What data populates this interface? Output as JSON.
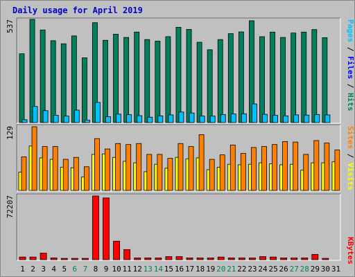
{
  "title": "Daily usage for April 2019",
  "colors": {
    "background": "#c0c0c0",
    "title": "#0000cc",
    "hits": "#00805c",
    "files": "#0000ff",
    "pages": "#00c0ff",
    "visits": "#ffff00",
    "sites": "#ff8000",
    "kbytes": "#ff0000",
    "weekend_day_label": "#00805c"
  },
  "chart_data": [
    {
      "type": "bar",
      "panel": "hits-files-pages",
      "ylim": [
        0,
        537
      ],
      "ymax_label": "537",
      "legend": [
        "Pages",
        "/",
        "Files",
        "/",
        "Hits"
      ],
      "categories": [
        "1",
        "2",
        "3",
        "4",
        "5",
        "6",
        "7",
        "8",
        "9",
        "10",
        "11",
        "12",
        "13",
        "14",
        "15",
        "16",
        "17",
        "18",
        "19",
        "20",
        "21",
        "22",
        "23",
        "24",
        "25",
        "26",
        "27",
        "28",
        "29",
        "30",
        "31"
      ],
      "series": [
        {
          "name": "Hits",
          "values": [
            358,
            537,
            482,
            426,
            410,
            451,
            337,
            520,
            428,
            460,
            443,
            471,
            432,
            424,
            447,
            496,
            485,
            418,
            379,
            432,
            463,
            472,
            530,
            447,
            471,
            443,
            466,
            471,
            484,
            442,
            0
          ]
        },
        {
          "name": "Files",
          "values": [
            0,
            0,
            0,
            0,
            0,
            0,
            0,
            0,
            0,
            0,
            0,
            0,
            0,
            0,
            0,
            0,
            0,
            0,
            0,
            0,
            0,
            0,
            0,
            0,
            0,
            0,
            0,
            0,
            0,
            0,
            0
          ]
        },
        {
          "name": "Pages",
          "values": [
            15,
            84,
            62,
            38,
            34,
            65,
            13,
            105,
            31,
            44,
            41,
            36,
            28,
            35,
            40,
            55,
            50,
            34,
            34,
            42,
            45,
            46,
            97,
            43,
            38,
            35,
            40,
            39,
            42,
            40,
            0
          ]
        }
      ]
    },
    {
      "type": "bar",
      "panel": "visits-sites",
      "ylim": [
        0,
        129
      ],
      "ymax_label": "129",
      "legend": [
        "Sites",
        "/",
        "Visits"
      ],
      "categories": [
        "1",
        "2",
        "3",
        "4",
        "5",
        "6",
        "7",
        "8",
        "9",
        "10",
        "11",
        "12",
        "13",
        "14",
        "15",
        "16",
        "17",
        "18",
        "19",
        "20",
        "21",
        "22",
        "23",
        "24",
        "25",
        "26",
        "27",
        "28",
        "29",
        "30",
        "31"
      ],
      "series": [
        {
          "name": "Sites",
          "values": [
            68,
            129,
            89,
            89,
            63,
            67,
            48,
            105,
            84,
            95,
            93,
            95,
            73,
            73,
            65,
            95,
            89,
            113,
            63,
            72,
            92,
            75,
            87,
            89,
            93,
            99,
            98,
            73,
            101,
            96,
            82
          ]
        },
        {
          "name": "Visits",
          "values": [
            37,
            90,
            66,
            63,
            47,
            46,
            27,
            73,
            74,
            67,
            59,
            56,
            38,
            53,
            45,
            67,
            64,
            66,
            42,
            47,
            53,
            52,
            53,
            56,
            54,
            52,
            53,
            41,
            56,
            56,
            58
          ]
        }
      ]
    },
    {
      "type": "bar",
      "panel": "kbytes",
      "ylim": [
        0,
        72207
      ],
      "ymax_label": "72207",
      "legend": [
        "KBytes"
      ],
      "categories": [
        "1",
        "2",
        "3",
        "4",
        "5",
        "6",
        "7",
        "8",
        "9",
        "10",
        "11",
        "12",
        "13",
        "14",
        "15",
        "16",
        "17",
        "18",
        "19",
        "20",
        "21",
        "22",
        "23",
        "24",
        "25",
        "26",
        "27",
        "28",
        "29",
        "30",
        "31"
      ],
      "series": [
        {
          "name": "KBytes",
          "values": [
            3000,
            3000,
            7500,
            2000,
            1500,
            1500,
            1500,
            72207,
            70000,
            21000,
            11500,
            2000,
            2000,
            2000,
            3500,
            3500,
            2000,
            2000,
            2000,
            3000,
            2000,
            2000,
            2000,
            3500,
            3000,
            2000,
            2000,
            2000,
            6000,
            1500,
            0
          ]
        }
      ]
    }
  ],
  "weekend_days": [
    "6",
    "7",
    "13",
    "14",
    "20",
    "21",
    "27",
    "28"
  ]
}
